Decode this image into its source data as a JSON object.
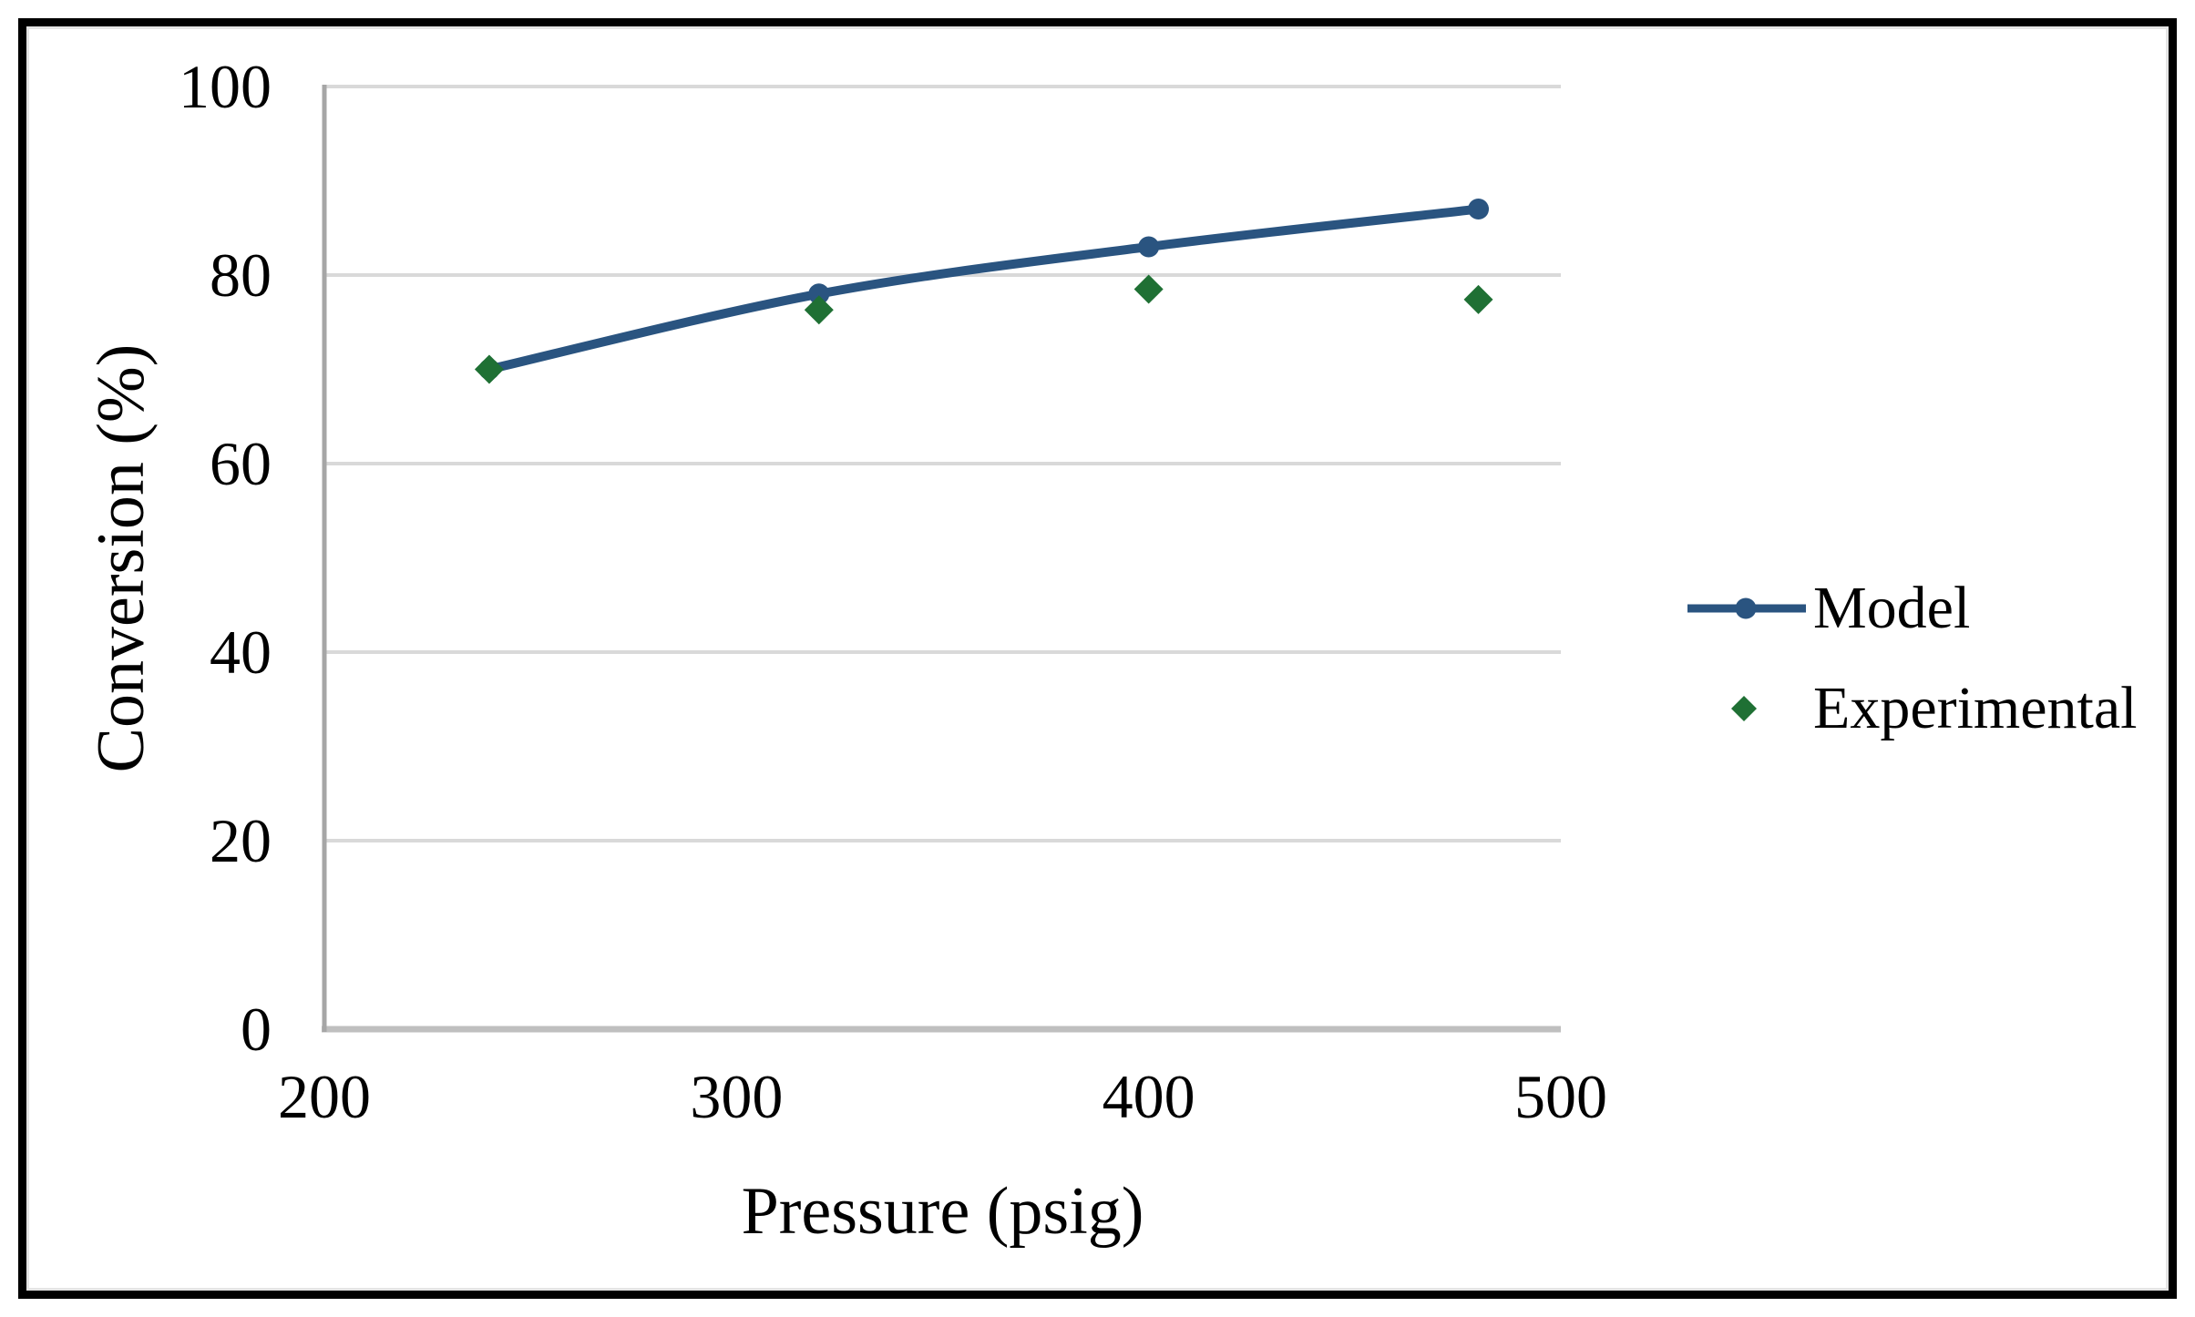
{
  "chart_data": {
    "type": "line",
    "xlabel": "Pressure (psig)",
    "ylabel": "Conversion (%)",
    "x": [
      240,
      320,
      400,
      480
    ],
    "series": [
      {
        "name": "Model",
        "type": "line-with-markers",
        "marker": "circle",
        "color": "#2A5480",
        "values": [
          70,
          78,
          83,
          87
        ]
      },
      {
        "name": "Experimental",
        "type": "scatter",
        "marker": "diamond",
        "color": "#1F7034",
        "values": [
          70,
          76.3,
          78.5,
          77.4
        ]
      }
    ],
    "xlim": [
      200,
      500
    ],
    "ylim": [
      0,
      100
    ],
    "xticks": [
      200,
      300,
      400,
      500
    ],
    "yticks": [
      0,
      20,
      40,
      60,
      80,
      100
    ],
    "grid": "horizontal",
    "gridline_color": "#D9D9D9",
    "x_axis_color": "#BFBFBF",
    "y_axis_color": "#A6A6A6",
    "frame_border_color": "#000000",
    "legend_position": "right"
  }
}
